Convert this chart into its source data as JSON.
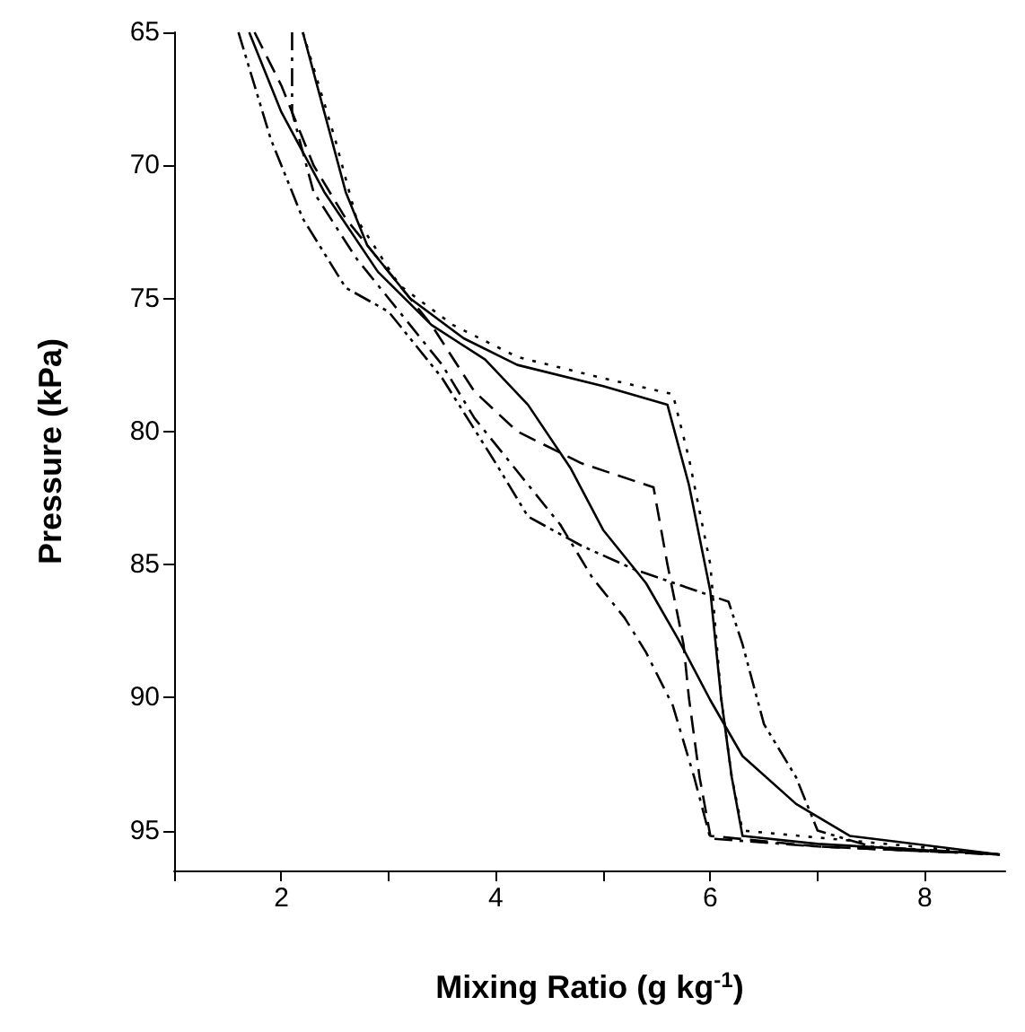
{
  "chart_data": {
    "type": "line",
    "xlabel": "Mixing Ratio (g kg$^{-1}$)",
    "ylabel": "Pressure (kPa)",
    "xlim": [
      1,
      8.75
    ],
    "xticks": [
      {
        "value": 1,
        "label": null
      },
      2,
      {
        "value": 3,
        "label": null
      },
      4,
      {
        "value": 5,
        "label": null
      },
      6,
      {
        "value": 7,
        "label": null
      },
      8
    ],
    "ylim": [
      96.5,
      65
    ],
    "yticks": [
      65,
      70,
      75,
      80,
      85,
      90,
      95
    ],
    "grid": false,
    "marker": "none",
    "series": [
      {
        "color": "#000000",
        "line_style": "solid",
        "x": [
          2.2,
          2.4,
          2.6,
          2.8,
          3.2,
          3.7,
          4.2,
          5.0,
          5.6,
          5.8,
          6.0,
          6.1,
          6.2,
          6.3,
          7.0,
          8.7
        ],
        "values": [
          65,
          68,
          71,
          73,
          75,
          76.5,
          77.5,
          78.3,
          79,
          82,
          86,
          90,
          93,
          95.2,
          95.5,
          95.9
        ]
      },
      {
        "color": "#000000",
        "line_style": "dotted",
        "x": [
          2.2,
          2.5,
          2.7,
          3.1,
          3.6,
          4.2,
          5.0,
          5.65,
          5.8,
          6.0,
          6.1,
          6.2,
          6.3,
          8.7
        ],
        "values": [
          65,
          69,
          72,
          74.5,
          76,
          77.2,
          78,
          78.6,
          81,
          85,
          90,
          93,
          95,
          95.9
        ]
      },
      {
        "color": "#000000",
        "line_style": "solid",
        "x": [
          1.7,
          2.0,
          2.4,
          2.9,
          3.4,
          3.9,
          4.3,
          4.7,
          5.0,
          5.4,
          5.7,
          6.0,
          6.3,
          6.8,
          7.3,
          8.7
        ],
        "values": [
          65,
          68,
          71,
          74,
          76,
          77.3,
          79,
          81.4,
          83.7,
          85.7,
          87.8,
          90.1,
          92.2,
          94,
          95.2,
          95.9
        ]
      },
      {
        "color": "#000000",
        "line_style": "dashed",
        "x": [
          1.75,
          2.0,
          2.3,
          2.6,
          3.0,
          3.4,
          3.8,
          4.2,
          4.8,
          5.47,
          5.6,
          5.75,
          5.8,
          5.9,
          6.0,
          7.0,
          8.7
        ],
        "values": [
          65,
          67,
          70,
          72,
          74,
          76,
          78.5,
          80,
          81.2,
          82.1,
          85,
          88,
          90,
          93,
          95.2,
          95.6,
          95.9
        ]
      },
      {
        "color": "#000000",
        "line_style": "dashdotdot",
        "x": [
          1.6,
          1.9,
          2.2,
          2.6,
          3.0,
          3.5,
          4.0,
          4.3,
          4.8,
          5.3,
          6.17,
          6.3,
          6.5,
          6.8,
          7.0,
          7.5,
          8.7
        ],
        "values": [
          65,
          69,
          72,
          74.6,
          75.5,
          78,
          81.2,
          83.2,
          84.3,
          85.2,
          86.4,
          88,
          91,
          93,
          95,
          95.6,
          95.9
        ]
      },
      {
        "color": "#000000",
        "line_style": "dashdot",
        "x": [
          2.1,
          2.1,
          2.3,
          2.7,
          3.0,
          3.5,
          3.8,
          4.2,
          4.6,
          4.9,
          5.2,
          5.4,
          5.65,
          5.85,
          6.0,
          7.0,
          8.7
        ],
        "values": [
          65,
          68,
          71,
          73.5,
          75,
          77.5,
          79.5,
          81.5,
          83.5,
          85.5,
          87,
          88.3,
          90.3,
          93,
          95.3,
          95.6,
          95.9
        ]
      }
    ]
  }
}
